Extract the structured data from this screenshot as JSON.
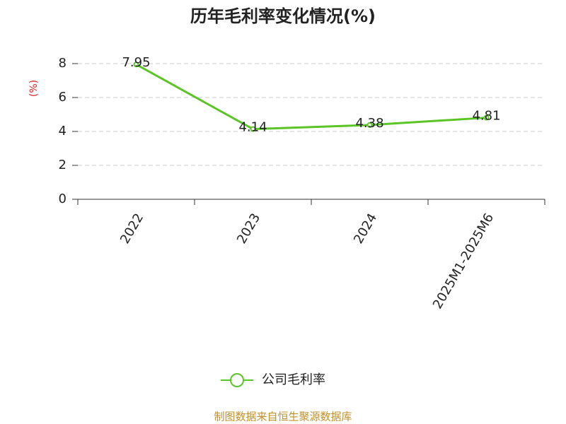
{
  "chart_data": {
    "type": "line",
    "title": "历年毛利率变化情况(%)",
    "y_label": "(%)",
    "categories": [
      "2022",
      "2023",
      "2024",
      "2025M1-2025M6"
    ],
    "series": [
      {
        "name": "公司毛利率",
        "color": "#5bc526",
        "values": [
          7.95,
          4.14,
          4.38,
          4.81
        ]
      }
    ],
    "ylim": [
      0,
      8
    ],
    "yticks": [
      0,
      2,
      4,
      6,
      8
    ],
    "grid": true,
    "legend": "bottom",
    "source": "制图数据来自恒生聚源数据库"
  }
}
